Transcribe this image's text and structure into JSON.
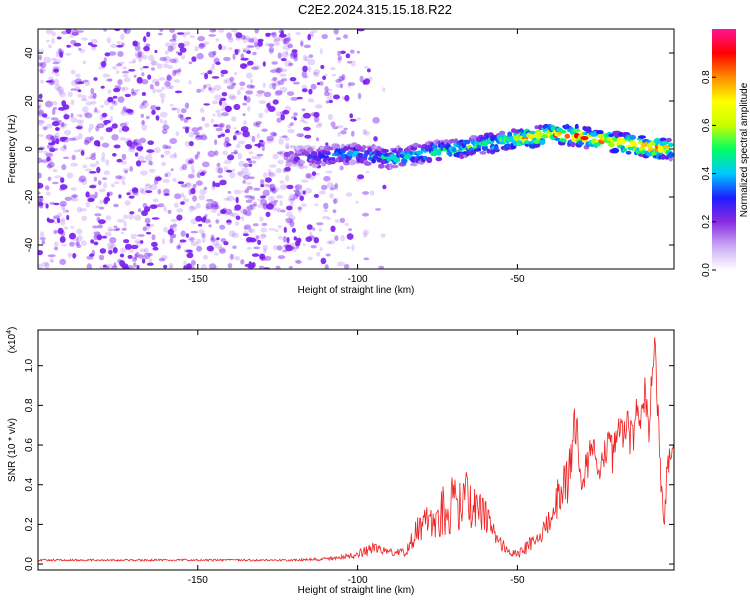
{
  "figure": {
    "title": "C2E2.2024.315.15.18.R22"
  },
  "colors": {
    "spectrogram_dots": "#7a1cf0",
    "snr_line": "#ee2222",
    "axes": "#000000"
  },
  "chart_data": [
    {
      "type": "heatmap",
      "title": "C2E2.2024.315.15.18.R22",
      "xlabel": "Height of straight line (km)",
      "ylabel": "Frequency (Hz)",
      "xlim": [
        -200,
        -1
      ],
      "ylim": [
        -50,
        50
      ],
      "xticks": [
        -150,
        -100,
        -50
      ],
      "yticks": [
        -40,
        -20,
        0,
        20,
        40
      ],
      "colorbar": {
        "label": "Normalized spectral amplitude",
        "range": [
          0,
          1
        ],
        "ticks": [
          0.0,
          0.2,
          0.4,
          0.6,
          0.8
        ],
        "colormap": [
          "#ffffff",
          "#c9a8f5",
          "#8a2be2",
          "#1d1dff",
          "#00c8ff",
          "#00ff66",
          "#c8ff00",
          "#ffff00",
          "#ff8c00",
          "#ff0000",
          "#ff1493"
        ]
      },
      "ridge": {
        "x": [
          -122,
          -115,
          -110,
          -105,
          -100,
          -95,
          -90,
          -85,
          -80,
          -75,
          -70,
          -65,
          -60,
          -55,
          -50,
          -45,
          -40,
          -35,
          -30,
          -25,
          -20,
          -15,
          -10,
          -5,
          -2
        ],
        "y": [
          -3,
          -3,
          -3,
          -2,
          -2,
          -3,
          -4,
          -3,
          -2,
          -1,
          0,
          1,
          2,
          3,
          4,
          5,
          6,
          6,
          5,
          4,
          3,
          2,
          1,
          0,
          0
        ],
        "amplitude": [
          0.25,
          0.3,
          0.35,
          0.4,
          0.45,
          0.45,
          0.5,
          0.5,
          0.5,
          0.55,
          0.55,
          0.55,
          0.6,
          0.6,
          0.7,
          0.85,
          0.9,
          0.9,
          0.9,
          0.85,
          0.85,
          0.9,
          0.95,
          0.9,
          0.8
        ],
        "half_width_hz": 4
      },
      "noise_region": {
        "x_start": -200,
        "x_end": -90
      }
    },
    {
      "type": "line",
      "xlabel": "Height of straight line (km)",
      "ylabel": "SNR (10 * v/v)",
      "yscale_label": "(x10",
      "yscale_exponent": "4",
      "xlim": [
        -200,
        -1
      ],
      "ylim": [
        -0.03,
        1.18
      ],
      "xticks": [
        -150,
        -100,
        -50
      ],
      "yticks": [
        0.0,
        0.2,
        0.4,
        0.6,
        0.8,
        1.0
      ],
      "series": [
        {
          "x": [
            -200,
            -190,
            -180,
            -170,
            -160,
            -150,
            -140,
            -130,
            -120,
            -110,
            -105,
            -100,
            -97,
            -95,
            -90,
            -85,
            -82,
            -80,
            -78,
            -75,
            -72,
            -70,
            -68,
            -66,
            -64,
            -62,
            -60,
            -58,
            -56,
            -54,
            -52,
            -50,
            -48,
            -46,
            -44,
            -42,
            -40,
            -38,
            -36,
            -34,
            -33,
            -32,
            -31,
            -30,
            -28,
            -26,
            -24,
            -22,
            -20,
            -18,
            -16,
            -14,
            -13,
            -12,
            -11,
            -10,
            -9,
            -8,
            -7,
            -6,
            -5,
            -4,
            -3,
            -2,
            -1
          ],
          "y": [
            0.02,
            0.02,
            0.02,
            0.02,
            0.02,
            0.02,
            0.02,
            0.02,
            0.02,
            0.025,
            0.035,
            0.05,
            0.07,
            0.08,
            0.06,
            0.06,
            0.15,
            0.2,
            0.22,
            0.25,
            0.28,
            0.3,
            0.33,
            0.32,
            0.3,
            0.3,
            0.25,
            0.18,
            0.12,
            0.08,
            0.06,
            0.05,
            0.07,
            0.1,
            0.14,
            0.18,
            0.22,
            0.3,
            0.38,
            0.45,
            0.6,
            0.75,
            0.6,
            0.42,
            0.52,
            0.58,
            0.5,
            0.58,
            0.55,
            0.65,
            0.7,
            0.62,
            0.75,
            0.68,
            0.72,
            0.88,
            0.65,
            0.9,
            1.17,
            0.72,
            0.35,
            0.25,
            0.5,
            0.58,
            0.62
          ],
          "noise_amplitude": [
            0.005,
            0.005,
            0.005,
            0.005,
            0.005,
            0.005,
            0.005,
            0.005,
            0.005,
            0.008,
            0.01,
            0.02,
            0.03,
            0.03,
            0.02,
            0.02,
            0.06,
            0.08,
            0.1,
            0.12,
            0.13,
            0.15,
            0.17,
            0.15,
            0.12,
            0.12,
            0.1,
            0.06,
            0.04,
            0.03,
            0.02,
            0.02,
            0.03,
            0.04,
            0.05,
            0.06,
            0.08,
            0.1,
            0.12,
            0.14,
            0.14,
            0.14,
            0.1,
            0.08,
            0.1,
            0.1,
            0.1,
            0.1,
            0.1,
            0.1,
            0.1,
            0.1,
            0.12,
            0.1,
            0.1,
            0.12,
            0.1,
            0.12,
            0.08,
            0.12,
            0.06,
            0.06,
            0.08,
            0.06,
            0.06
          ]
        }
      ]
    }
  ]
}
